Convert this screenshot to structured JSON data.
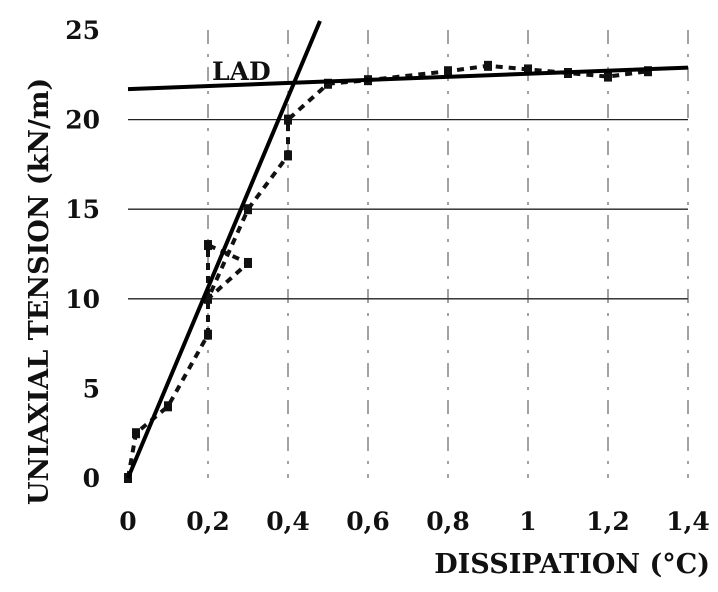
{
  "chart_data": {
    "type": "line",
    "xlabel": "DISSIPATION (°C)",
    "ylabel": "UNIAXIAL TENSION (kN/m)",
    "xlim": [
      0,
      1.4
    ],
    "ylim": [
      0,
      25
    ],
    "x_ticks": [
      "0",
      "0,2",
      "0,4",
      "0,6",
      "0,8",
      "1",
      "1,2",
      "1,4"
    ],
    "y_ticks": [
      "0",
      "5",
      "10",
      "15",
      "20",
      "25"
    ],
    "grid": "horizontal lines at 10, 15, 20; dashed vertical lines",
    "annotation": "LAD",
    "series": [
      {
        "style": "dotted-markers",
        "x": [
          0.0,
          0.02,
          0.1,
          0.2,
          0.2,
          0.3,
          0.2,
          0.3,
          0.4,
          0.4,
          0.5,
          0.6,
          0.8,
          0.9,
          1.0,
          1.1,
          1.2,
          1.3
        ],
        "y": [
          0.0,
          2.5,
          4.0,
          8.0,
          13.0,
          12.0,
          10.0,
          15.0,
          18.0,
          20.0,
          22.0,
          22.2,
          22.7,
          23.0,
          22.8,
          22.6,
          22.4,
          22.7
        ]
      },
      {
        "style": "solid-line",
        "x": [
          0.0,
          0.48
        ],
        "y": [
          0.0,
          25.5
        ]
      },
      {
        "style": "solid-line",
        "x": [
          0.0,
          1.4
        ],
        "y": [
          21.7,
          22.9
        ]
      }
    ]
  }
}
